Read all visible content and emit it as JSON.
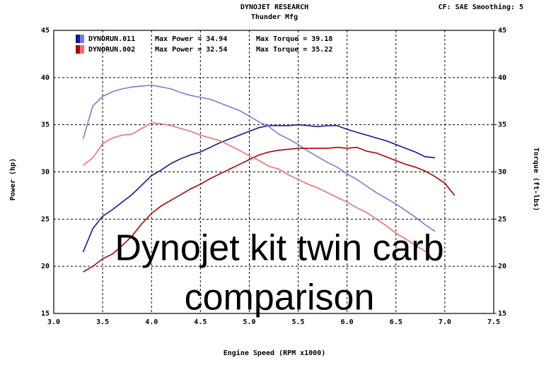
{
  "chart_data": {
    "type": "line",
    "title": "DYNOJET RESEARCH",
    "subtitle": "Thunder Mfg",
    "settings_text": "CF: SAE  Smoothing: 5",
    "xlabel": "Engine Speed (RPM x1000)",
    "ylabel": "Power (hp)",
    "y2label": "Torque (ft-lbs)",
    "annotation": [
      "Dynojet kit twin carb",
      "comparison"
    ],
    "grid": true,
    "xlim": [
      3.0,
      7.5
    ],
    "xticks": [
      {
        "value": 3.0,
        "label": "3.0"
      },
      3.5,
      {
        "value": 4.0,
        "label": "4.0"
      },
      4.5,
      {
        "value": 5.0,
        "label": "5.0"
      },
      5.5,
      {
        "value": 6.0,
        "label": "6.0"
      },
      6.5,
      {
        "value": 7.0,
        "label": "7.0"
      },
      7.5
    ],
    "ylim": [
      15,
      45
    ],
    "yticks": [
      15,
      20,
      25,
      30,
      35,
      40,
      45
    ],
    "y2lim": [
      15,
      45
    ],
    "y2ticks": [
      15,
      20,
      25,
      30,
      35,
      40,
      45
    ],
    "x": [
      3.3,
      3.4,
      3.5,
      3.6,
      3.7,
      3.8,
      3.9,
      4.0,
      4.1,
      4.2,
      4.3,
      4.4,
      4.5,
      4.6,
      4.7,
      4.8,
      4.9,
      5.0,
      5.1,
      5.2,
      5.3,
      5.4,
      5.5,
      5.6,
      5.7,
      5.8,
      5.9,
      6.0,
      6.1,
      6.2,
      6.3,
      6.4,
      6.5,
      6.6,
      6.7,
      6.8,
      6.9,
      7.0,
      7.1
    ],
    "series": [
      {
        "name": "DYNORUN.011",
        "label": "Max Power = 34.94",
        "color": "#14149a",
        "values": [
          21.5,
          24.0,
          25.3,
          26.0,
          26.8,
          27.6,
          28.6,
          29.6,
          30.2,
          30.9,
          31.4,
          31.8,
          32.1,
          32.6,
          33.1,
          33.5,
          33.9,
          34.3,
          34.7,
          34.9,
          34.9,
          34.9,
          35.0,
          34.9,
          34.8,
          34.9,
          34.9,
          34.5,
          34.2,
          33.9,
          33.6,
          33.3,
          32.9,
          32.5,
          32.1,
          31.6,
          31.5,
          null,
          null
        ]
      },
      {
        "name": "DYNORUN.011",
        "label": "Max Torque = 39.18",
        "color": "#7b7bd6",
        "axis": "y2",
        "values": [
          33.5,
          37.0,
          38.0,
          38.5,
          38.8,
          39.0,
          39.1,
          39.2,
          39.0,
          38.8,
          38.4,
          38.1,
          37.9,
          37.7,
          37.3,
          36.9,
          36.5,
          35.9,
          35.3,
          34.8,
          34.0,
          33.5,
          32.9,
          32.2,
          31.6,
          31.0,
          30.5,
          29.8,
          29.2,
          28.5,
          27.8,
          27.2,
          26.6,
          25.9,
          25.2,
          24.4,
          23.7,
          null,
          null
        ]
      },
      {
        "name": "DYNORUN.002",
        "label": "Max Power = 32.54",
        "color": "#b00000",
        "values": [
          19.4,
          20.0,
          20.8,
          21.3,
          22.2,
          23.2,
          24.5,
          25.6,
          26.4,
          27.0,
          27.6,
          28.2,
          28.7,
          29.3,
          29.8,
          30.3,
          30.8,
          31.3,
          31.8,
          32.1,
          32.3,
          32.4,
          32.5,
          32.5,
          32.5,
          32.5,
          32.6,
          32.5,
          32.6,
          32.2,
          32.0,
          31.6,
          31.2,
          30.8,
          30.5,
          30.1,
          29.5,
          28.8,
          27.5
        ]
      },
      {
        "name": "DYNORUN.002",
        "label": "Max Torque = 35.22",
        "color": "#f07070",
        "axis": "y2",
        "values": [
          30.7,
          31.5,
          33.0,
          33.6,
          33.9,
          34.0,
          34.6,
          35.2,
          35.1,
          34.9,
          34.6,
          34.3,
          33.9,
          33.6,
          33.3,
          32.8,
          32.3,
          31.7,
          31.2,
          30.6,
          30.3,
          29.7,
          29.2,
          28.7,
          28.3,
          27.8,
          27.3,
          26.8,
          26.2,
          25.7,
          25.0,
          24.3,
          23.5,
          22.9,
          22.2,
          21.6,
          20.6,
          null,
          null
        ]
      }
    ]
  }
}
